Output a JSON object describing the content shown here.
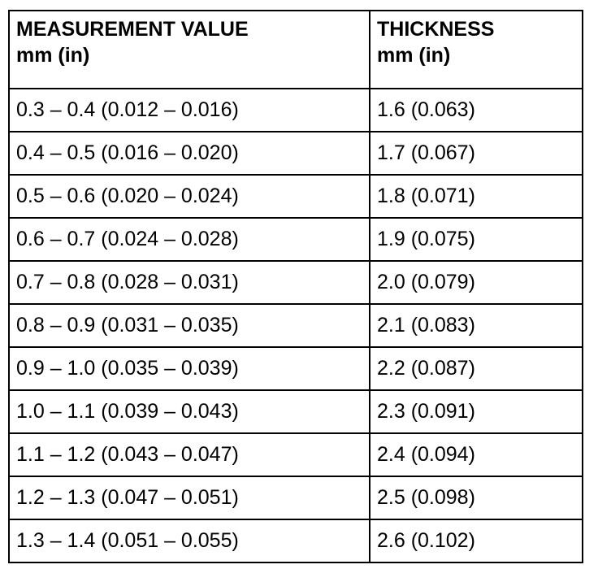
{
  "table": {
    "header": [
      [
        "MEASUREMENT VALUE",
        "mm (in)"
      ],
      [
        "THICKNESS",
        "mm (in)"
      ]
    ],
    "rows": [
      [
        "0.3 – 0.4 (0.012 – 0.016)",
        "1.6 (0.063)"
      ],
      [
        "0.4 – 0.5 (0.016 – 0.020)",
        "1.7 (0.067)"
      ],
      [
        "0.5 – 0.6 (0.020 – 0.024)",
        "1.8 (0.071)"
      ],
      [
        "0.6 – 0.7 (0.024 – 0.028)",
        "1.9 (0.075)"
      ],
      [
        "0.7 – 0.8 (0.028 – 0.031)",
        "2.0 (0.079)"
      ],
      [
        "0.8 – 0.9 (0.031 – 0.035)",
        "2.1 (0.083)"
      ],
      [
        "0.9 – 1.0 (0.035 – 0.039)",
        "2.2 (0.087)"
      ],
      [
        "1.0 – 1.1 (0.039 – 0.043)",
        "2.3 (0.091)"
      ],
      [
        "1.1 – 1.2 (0.043 – 0.047)",
        "2.4 (0.094)"
      ],
      [
        "1.2 – 1.3 (0.047 – 0.051)",
        "2.5 (0.098)"
      ],
      [
        "1.3 – 1.4 (0.051 – 0.055)",
        "2.6 (0.102)"
      ]
    ]
  }
}
